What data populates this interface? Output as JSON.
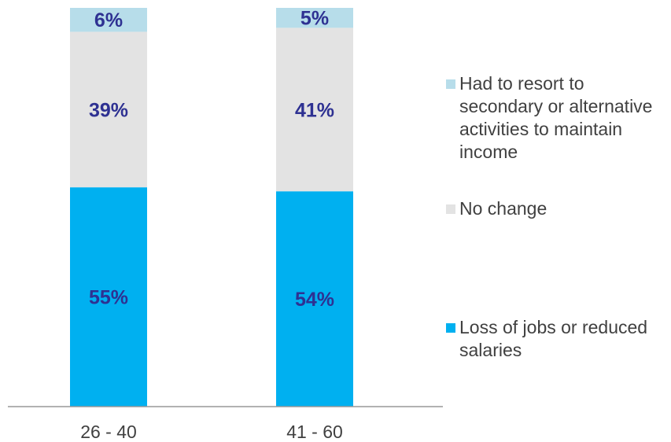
{
  "chart_data": {
    "type": "bar",
    "stacked": true,
    "percent": true,
    "categories": [
      "26 - 40",
      "41 - 60"
    ],
    "series": [
      {
        "name": "Loss of jobs or reduced salaries",
        "values": [
          55,
          54
        ],
        "labels": [
          "55%",
          "54%"
        ],
        "color": "#00B0F0"
      },
      {
        "name": "No change",
        "values": [
          39,
          41
        ],
        "labels": [
          "39%",
          "41%"
        ],
        "color": "#E3E3E3"
      },
      {
        "name": "Had to resort to secondary or alternative activities to maintain income",
        "values": [
          6,
          5
        ],
        "labels": [
          "6%",
          "5%"
        ],
        "color": "#B7DDEA"
      }
    ],
    "ylim": [
      0,
      100
    ],
    "grid": false,
    "legend_position": "right",
    "data_label_color": "#2E3192",
    "axis_label_color": "#404040"
  }
}
